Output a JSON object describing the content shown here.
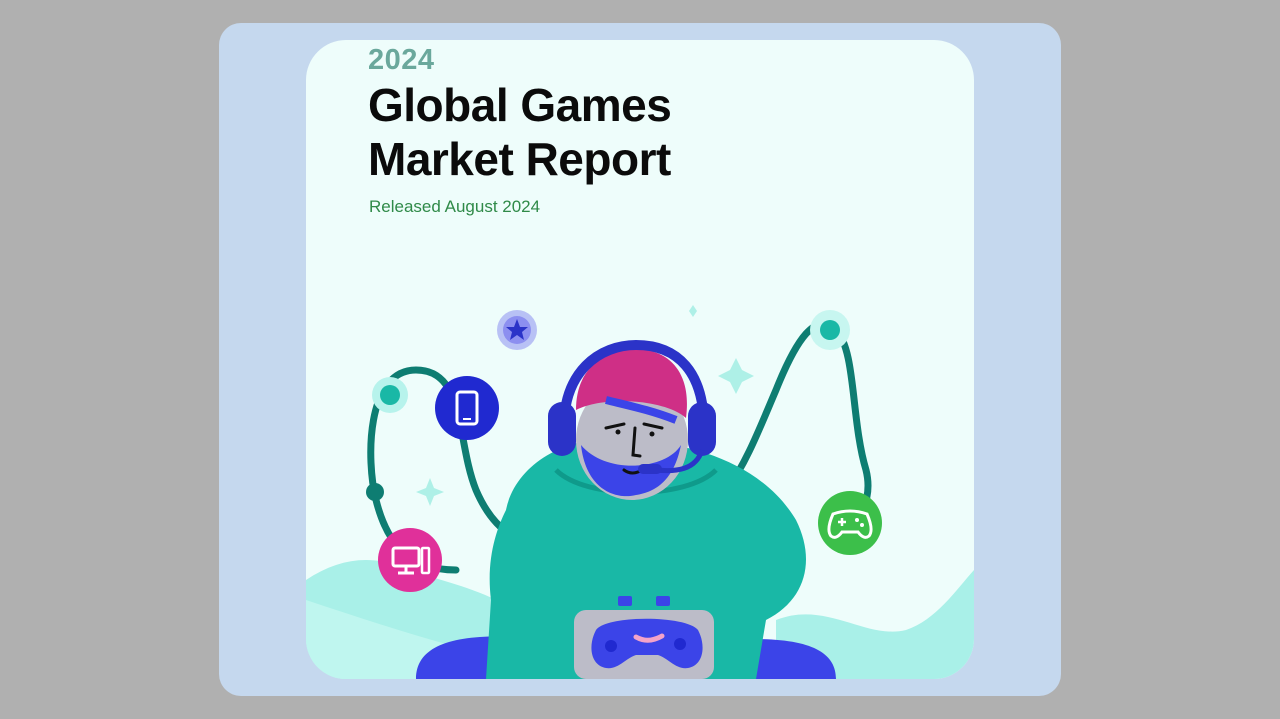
{
  "cover": {
    "year": "2024",
    "title": "Global Games\nMarket Report",
    "released": "Released August 2024"
  },
  "illustration": {
    "icons": [
      "star-icon",
      "smartphone-icon",
      "desktop-computer-icon",
      "gamepad-icon",
      "sparkle-icon"
    ],
    "colors": {
      "background": "#eefdfb",
      "teal_cable": "#0e7d72",
      "hoodie": "#19b8a6",
      "headset": "#2b33c8",
      "turban": "#cf2f86",
      "beard": "#3b44e8",
      "phone_badge": "#2029d0",
      "pc_badge": "#e0309a",
      "gamepad_badge": "#3cbf4a",
      "star_badge": "#8c8ff0"
    }
  }
}
